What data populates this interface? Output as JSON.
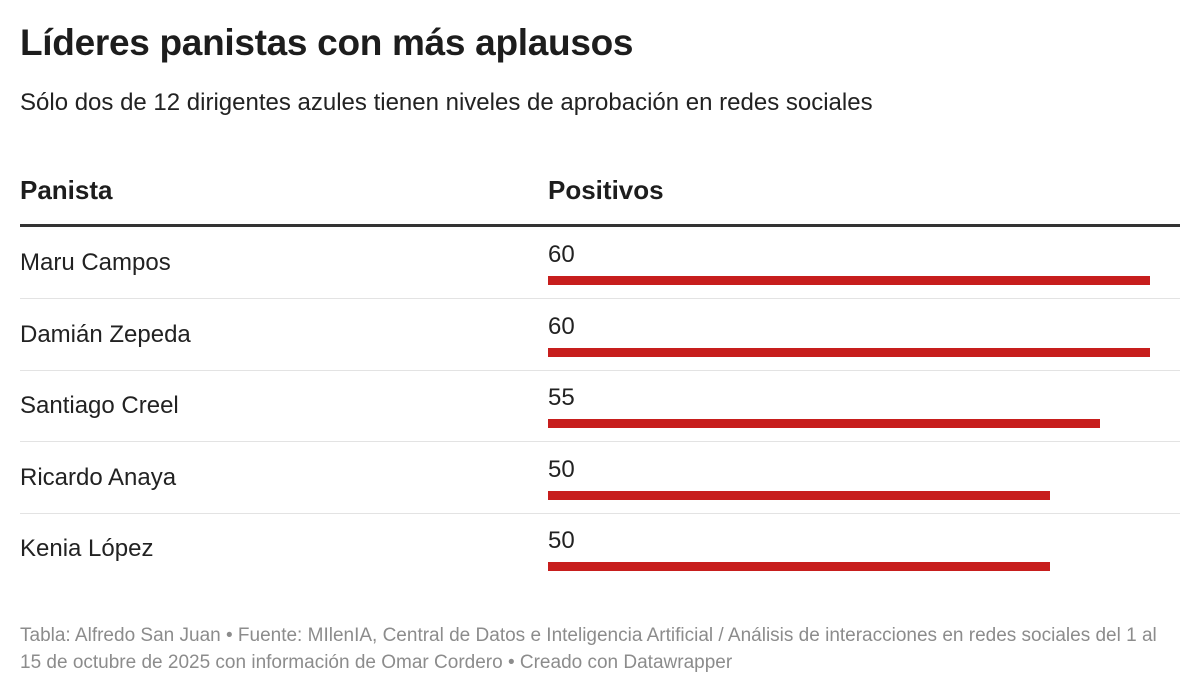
{
  "header": {
    "title": "Líderes panistas con más aplausos",
    "subtitle": "Sólo dos de 12 dirigentes azules tienen niveles de aprobación en redes sociales"
  },
  "table": {
    "columns": [
      "Panista",
      "Positivos"
    ]
  },
  "chart_data": {
    "type": "bar",
    "categories": [
      "Maru Campos",
      "Damián Zepeda",
      "Santiago Creel",
      "Ricardo Anaya",
      "Kenia López"
    ],
    "values": [
      60,
      60,
      55,
      50,
      50
    ],
    "xlabel": "",
    "ylabel": "Positivos",
    "xlim": [
      0,
      60
    ],
    "grid": false,
    "bar_color": "#c71e1d"
  },
  "footer": {
    "text": "Tabla: Alfredo San Juan • Fuente: MIlenIA, Central de Datos e Inteligencia Artificial / Análisis de interacciones en redes sociales del 1 al 15 de octubre de 2025 con información de Omar Cordero  • Creado con Datawrapper"
  }
}
